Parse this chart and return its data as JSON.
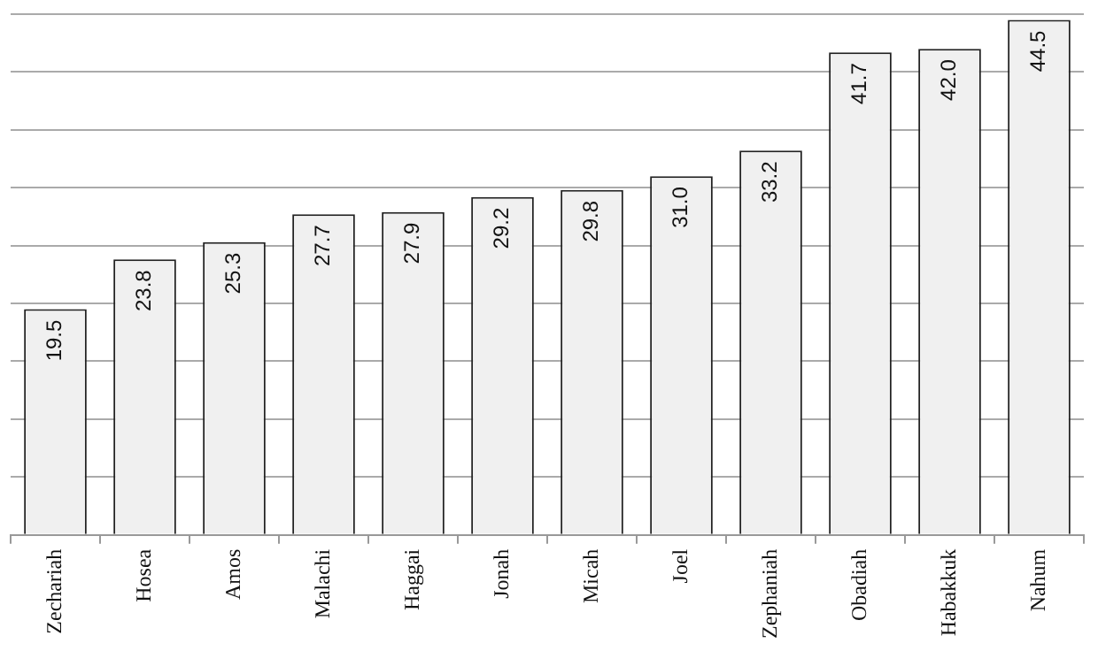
{
  "chart_data": {
    "type": "bar",
    "categories": [
      "Zechariah",
      "Hosea",
      "Amos",
      "Malachi",
      "Haggai",
      "Jonah",
      "Micah",
      "Joel",
      "Zephaniah",
      "Obadiah",
      "Habakkuk",
      "Nahum"
    ],
    "values": [
      19.5,
      23.8,
      25.3,
      27.7,
      27.9,
      29.2,
      29.8,
      31.0,
      33.2,
      41.7,
      42.0,
      44.5
    ],
    "color": "#f0f0f0",
    "ylim": [
      0,
      45
    ],
    "yticks": [
      {
        "value": 0,
        "label": null
      },
      {
        "value": 5,
        "label": null
      },
      {
        "value": 10,
        "label": null
      },
      {
        "value": 15,
        "label": null
      },
      {
        "value": 20,
        "label": null
      },
      {
        "value": 25,
        "label": null
      },
      {
        "value": 30,
        "label": null
      },
      {
        "value": 35,
        "label": null
      },
      {
        "value": 40,
        "label": null
      },
      {
        "value": 45,
        "label": null
      }
    ],
    "value_labels": [
      "19.5",
      "23.8",
      "25.3",
      "27.7",
      "27.9",
      "29.2",
      "29.8",
      "31.0",
      "33.2",
      "41.7",
      "42.0",
      "44.5"
    ],
    "grid": "y",
    "legend": false,
    "tick_labels": "x"
  }
}
